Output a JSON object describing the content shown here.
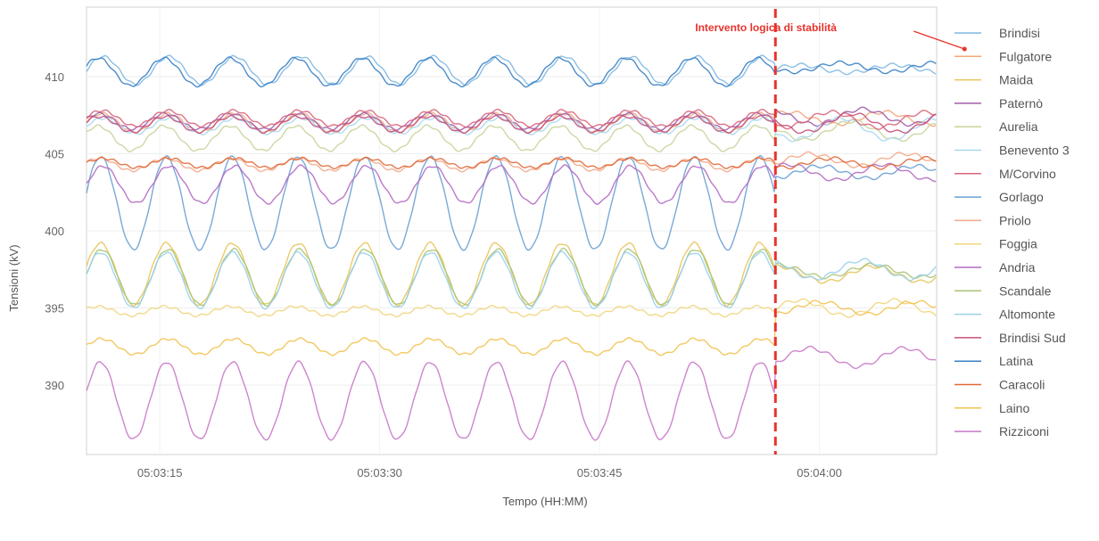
{
  "chart_data": {
    "type": "line",
    "title": "",
    "xlabel": "Tempo (HH:MM)",
    "ylabel": "Tensioni (kV)",
    "x_ticks": [
      "05:03:15",
      "05:03:30",
      "05:03:45",
      "05:04:00"
    ],
    "y_ticks": [
      "390",
      "395",
      "400",
      "405",
      "410"
    ],
    "xlim": [
      "05:03:10",
      "05:04:08"
    ],
    "ylim": [
      385.5,
      414.5
    ],
    "grid": true,
    "legend_position": "right",
    "event_time": "05:03:57",
    "annotation": "Intervento logica di stabilità",
    "series": [
      {
        "name": "Brindisi",
        "color": "#7fb8e0",
        "mean_before": 410.4,
        "amp_before": 0.9,
        "mean_after": 410.5,
        "amp_after": 0.25
      },
      {
        "name": "Fulgatore",
        "color": "#f0a77a",
        "mean_before": 407.0,
        "amp_before": 0.6,
        "mean_after": 407.3,
        "amp_after": 0.4
      },
      {
        "name": "Maida",
        "color": "#e8c45a",
        "mean_before": 397.2,
        "amp_before": 2.0,
        "mean_after": 397.2,
        "amp_after": 0.5
      },
      {
        "name": "Paternò",
        "color": "#a05ca8",
        "mean_before": 407.1,
        "amp_before": 0.5,
        "mean_after": 407.4,
        "amp_after": 0.5
      },
      {
        "name": "Aurelia",
        "color": "#c8d49a",
        "mean_before": 406.0,
        "amp_before": 0.8,
        "mean_after": 406.5,
        "amp_after": 0.6
      },
      {
        "name": "Benevento 3",
        "color": "#a8d8ee",
        "mean_before": 406.8,
        "amp_before": 0.5,
        "mean_after": 406.6,
        "amp_after": 0.7
      },
      {
        "name": "M/Corvino",
        "color": "#d9647a",
        "mean_before": 407.3,
        "amp_before": 0.5,
        "mean_after": 407.2,
        "amp_after": 0.5
      },
      {
        "name": "Gorlago",
        "color": "#6aa0d4",
        "mean_before": 401.8,
        "amp_before": 3.0,
        "mean_after": 403.8,
        "amp_after": 0.4
      },
      {
        "name": "Priolo",
        "color": "#f2a98a",
        "mean_before": 404.3,
        "amp_before": 0.4,
        "mean_after": 404.6,
        "amp_after": 0.4
      },
      {
        "name": "Foggia",
        "color": "#efd67e",
        "mean_before": 394.8,
        "amp_before": 0.3,
        "mean_after": 395.0,
        "amp_after": 0.5
      },
      {
        "name": "Andria",
        "color": "#b46ac4",
        "mean_before": 403.0,
        "amp_before": 1.2,
        "mean_after": 403.8,
        "amp_after": 0.5
      },
      {
        "name": "Scandale",
        "color": "#a9c478",
        "mean_before": 397.0,
        "amp_before": 1.8,
        "mean_after": 397.4,
        "amp_after": 0.4
      },
      {
        "name": "Altomonte",
        "color": "#9ad0ea",
        "mean_before": 396.8,
        "amp_before": 1.8,
        "mean_after": 397.5,
        "amp_after": 0.6
      },
      {
        "name": "Brindisi Sud",
        "color": "#c8507a",
        "mean_before": 406.9,
        "amp_before": 0.5,
        "mean_after": 407.0,
        "amp_after": 0.6
      },
      {
        "name": "Latina",
        "color": "#3a80c4",
        "mean_before": 410.3,
        "amp_before": 0.9,
        "mean_after": 410.6,
        "amp_after": 0.3
      },
      {
        "name": "Caracoli",
        "color": "#e06a3a",
        "mean_before": 404.4,
        "amp_before": 0.3,
        "mean_after": 404.4,
        "amp_after": 0.3
      },
      {
        "name": "Laino",
        "color": "#f2c250",
        "mean_before": 392.5,
        "amp_before": 0.5,
        "mean_after": 395.0,
        "amp_after": 0.4
      },
      {
        "name": "Rizziconi",
        "color": "#c878c8",
        "mean_before": 389.0,
        "amp_before": 2.5,
        "mean_after": 391.8,
        "amp_after": 0.6
      }
    ]
  }
}
